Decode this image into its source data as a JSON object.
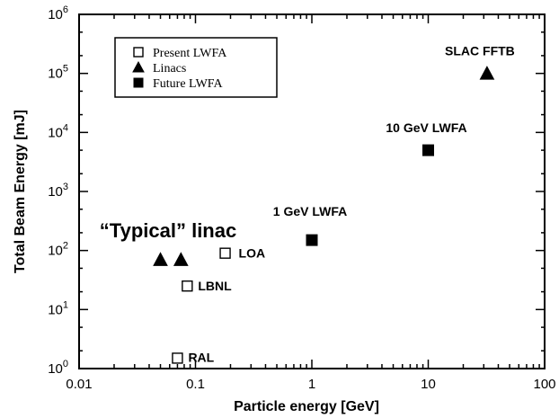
{
  "chart_data": {
    "type": "scatter",
    "xlabel": "Particle energy [GeV]",
    "ylabel": "Total Beam Energy [mJ]",
    "x_scale": "log",
    "y_scale": "log",
    "xlim": [
      0.01,
      100
    ],
    "ylim": [
      1,
      1000000
    ],
    "x_ticks": [
      {
        "value": 0.01,
        "label": "0.01"
      },
      {
        "value": 0.1,
        "label": "0.1"
      },
      {
        "value": 1,
        "label": "1"
      },
      {
        "value": 10,
        "label": "10"
      },
      {
        "value": 100,
        "label": "100"
      }
    ],
    "y_ticks": [
      {
        "value": 1,
        "label": "10",
        "exp": "0"
      },
      {
        "value": 10,
        "label": "10",
        "exp": "1"
      },
      {
        "value": 100,
        "label": "10",
        "exp": "2"
      },
      {
        "value": 1000,
        "label": "10",
        "exp": "3"
      },
      {
        "value": 10000,
        "label": "10",
        "exp": "4"
      },
      {
        "value": 100000,
        "label": "10",
        "exp": "5"
      },
      {
        "value": 1000000,
        "label": "10",
        "exp": "6"
      }
    ],
    "grid": false,
    "legend_position": "top-left",
    "series": [
      {
        "name": "Present LWFA",
        "marker": "open-square",
        "points": [
          {
            "x": 0.18,
            "y": 90,
            "label": "LOA"
          },
          {
            "x": 0.085,
            "y": 25,
            "label": "LBNL"
          },
          {
            "x": 0.07,
            "y": 1.5,
            "label": "RAL"
          }
        ]
      },
      {
        "name": "Linacs",
        "marker": "filled-triangle",
        "points": [
          {
            "x": 0.05,
            "y": 70,
            "label": ""
          },
          {
            "x": 0.075,
            "y": 70,
            "label": ""
          },
          {
            "x": 32,
            "y": 100000,
            "label": "SLAC FFTB"
          }
        ]
      },
      {
        "name": "Future LWFA",
        "marker": "filled-square",
        "points": [
          {
            "x": 1,
            "y": 150,
            "label": "1 GeV LWFA"
          },
          {
            "x": 10,
            "y": 5000,
            "label": "10 GeV LWFA"
          }
        ]
      }
    ],
    "annotations": [
      {
        "text": "“Typical” linac",
        "x": 0.015,
        "y": 220
      }
    ]
  }
}
